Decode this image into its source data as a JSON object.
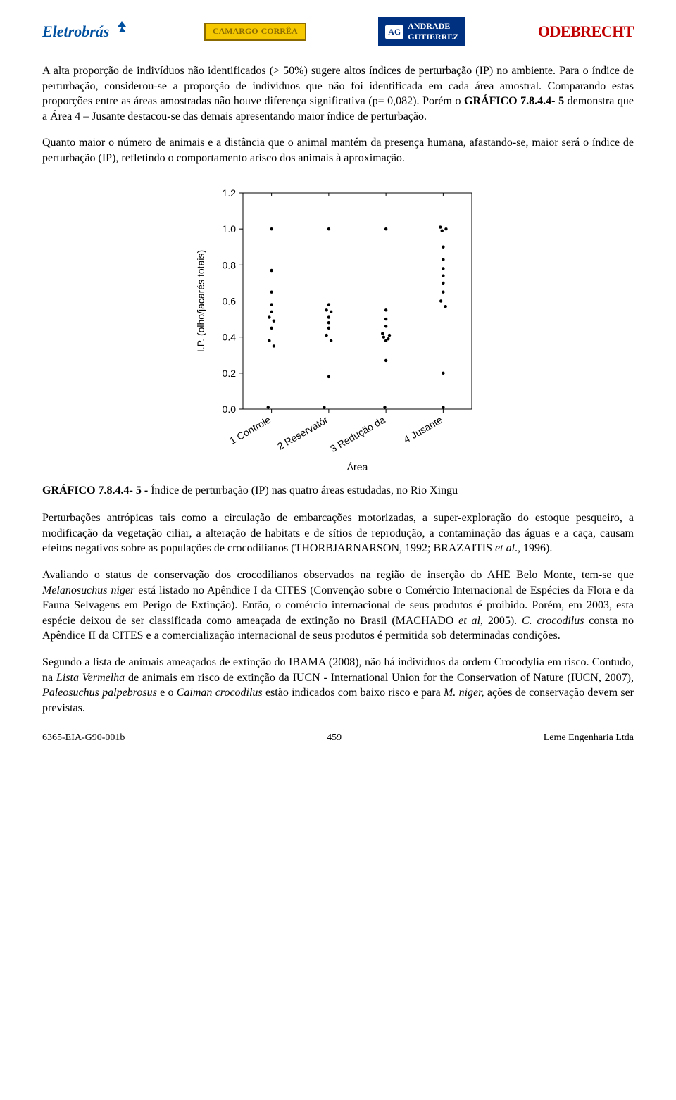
{
  "logos": {
    "eletrobras": "Eletrobrás",
    "camargo_l1": "CAMARGO",
    "camargo_l2": "CORRÊA",
    "andrade_ag": "AG",
    "andrade_l1": "ANDRADE",
    "andrade_l2": "GUTIERREZ",
    "odebrecht": "ODEBRECHT"
  },
  "para1_a": "A alta proporção de indivíduos não identificados (> 50%) sugere altos índices de perturbação (IP) no ambiente. Para o índice de perturbação, considerou-se a proporção de indivíduos que não foi identificada em cada área amostral. Comparando estas proporções entre as áreas amostradas não houve diferença significativa (p= 0,082). Porém o ",
  "para1_b": "GRÁFICO 7.8.4.4- 5",
  "para1_c": " demonstra que a Área 4 – Jusante destacou-se das demais apresentando maior índice de perturbação.",
  "para2": "Quanto maior o número de animais e a distância que o animal mantém da presença humana, afastando-se, maior será o índice de perturbação (IP), refletindo o comportamento arisco dos animais à aproximação.",
  "caption_a": "GRÁFICO 7.8.4.4- 5 - ",
  "caption_b": "Índice de perturbação (IP) nas quatro áreas estudadas, no Rio Xingu",
  "para3_a": "Perturbações antrópicas tais como a circulação de embarcações motorizadas, a super-exploração do estoque pesqueiro, a modificação da vegetação ciliar, a alteração de habitats e de sítios de reprodução, a contaminação das águas e a caça, causam efeitos negativos sobre as populações de crocodilianos (THORBJARNARSON, 1992; BRAZAITIS ",
  "para3_b": "et al",
  "para3_c": "., 1996).",
  "para4_a": "Avaliando o status de conservação dos crocodilianos observados na região de inserção do AHE Belo Monte, tem-se que ",
  "para4_b": "Melanosuchus niger",
  "para4_c": " está listado no Apêndice I da CITES (Convenção sobre o Comércio Internacional de Espécies da Flora e da Fauna Selvagens em Perigo de Extinção). Então, o comércio internacional de seus produtos é proibido. Porém, em 2003, esta espécie deixou de ser classificada como ameaçada de extinção no Brasil (MACHADO ",
  "para4_d": "et al",
  "para4_e": ", 2005). ",
  "para4_f": "C. crocodilus",
  "para4_g": " consta no Apêndice II da CITES e a comercialização internacional de seus produtos é permitida sob determinadas condições.",
  "para5_a": "Segundo a lista de animais ameaçados de extinção do IBAMA (2008), não há indivíduos da ordem Crocodylia em risco. Contudo, na ",
  "para5_b": "Lista Vermelha",
  "para5_c": " de animais em risco de extinção da IUCN - International Union for the Conservation of Nature (IUCN, 2007), ",
  "para5_d": "Paleosuchus palpebrosus",
  "para5_e": " e o ",
  "para5_f": "Caiman crocodilus",
  "para5_g": " estão indicados com baixo risco e para ",
  "para5_h": "M. niger,",
  "para5_i": " ações de conservação devem ser previstas.",
  "footer_left": "6365-EIA-G90-001b",
  "footer_center": "459",
  "footer_right": "Leme Engenharia Ltda",
  "chart": {
    "type": "scatter",
    "ylabel": "I.P. (olho/jacarés totais)",
    "xlabel": "Área",
    "x_categories": [
      "1 Controle",
      "2 Reservatór",
      "3 Redução da",
      "4 Jusante"
    ],
    "ylim": [
      0.0,
      1.2
    ],
    "yticks": [
      0.0,
      0.2,
      0.4,
      0.6,
      0.8,
      1.0,
      1.2
    ],
    "ytick_labels": [
      "0.0",
      "0.2",
      "0.4",
      "0.6",
      "0.8",
      "1.0",
      "1.2"
    ],
    "label_fontsize": 14,
    "tick_fontsize": 14,
    "point_radius": 2.2,
    "point_color": "#000000",
    "axis_color": "#000000",
    "background_color": "#ffffff",
    "x_tick_rotation": -30,
    "series": [
      {
        "x": 1,
        "ys": [
          1.0,
          0.77,
          0.65,
          0.58,
          0.54,
          0.51,
          0.49,
          0.45,
          0.38,
          0.35,
          0.01
        ],
        "jx": [
          0.0,
          0.0,
          0.0,
          0.0,
          0.0,
          -0.04,
          0.04,
          0.0,
          -0.04,
          0.04,
          -0.06
        ]
      },
      {
        "x": 2,
        "ys": [
          1.0,
          0.58,
          0.55,
          0.54,
          0.51,
          0.48,
          0.45,
          0.41,
          0.38,
          0.18,
          0.01
        ],
        "jx": [
          0.0,
          0.0,
          -0.04,
          0.04,
          0.0,
          0.0,
          0.0,
          -0.04,
          0.04,
          0.0,
          -0.08
        ]
      },
      {
        "x": 3,
        "ys": [
          1.0,
          0.55,
          0.5,
          0.46,
          0.42,
          0.41,
          0.4,
          0.39,
          0.38,
          0.27,
          0.01
        ],
        "jx": [
          0.0,
          0.0,
          0.0,
          0.0,
          -0.06,
          0.06,
          -0.04,
          0.04,
          0.0,
          0.0,
          -0.02
        ]
      },
      {
        "x": 4,
        "ys": [
          1.01,
          1.0,
          0.99,
          0.9,
          0.83,
          0.78,
          0.74,
          0.7,
          0.65,
          0.6,
          0.57,
          0.2,
          0.01
        ],
        "jx": [
          -0.05,
          0.05,
          -0.02,
          0.0,
          0.0,
          0.0,
          0.0,
          0.0,
          0.0,
          -0.04,
          0.04,
          0.0,
          0.0
        ]
      }
    ]
  }
}
